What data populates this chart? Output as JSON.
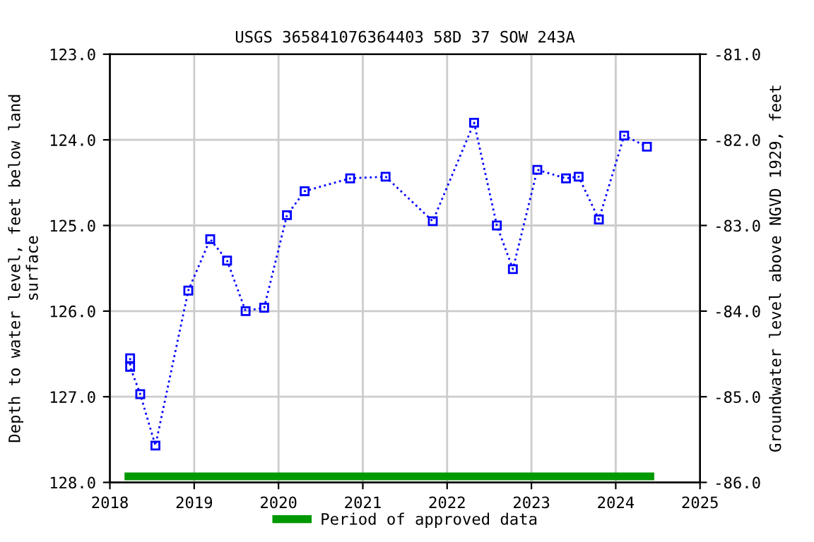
{
  "chart_data": {
    "type": "line",
    "title": "USGS 365841076364403 58D 37 SOW 243A",
    "ylabel": "Depth to water level, feet below land\nsurface",
    "y2label": "Groundwater level above NGVD 1929, feet",
    "xlim": [
      2018,
      2025
    ],
    "xticks": [
      2018,
      2019,
      2020,
      2021,
      2022,
      2023,
      2024,
      2025
    ],
    "ylim": [
      128,
      123
    ],
    "yticks": [
      {
        "value": 123,
        "label": "123.0"
      },
      {
        "value": 124,
        "label": "124.0"
      },
      {
        "value": 125,
        "label": "125.0"
      },
      {
        "value": 126,
        "label": "126.0"
      },
      {
        "value": 127,
        "label": "127.0"
      },
      {
        "value": 128,
        "label": "128.0"
      }
    ],
    "y2lim": [
      -86,
      -81
    ],
    "y2ticks": [
      {
        "value": -81,
        "label": "-81.0"
      },
      {
        "value": -82,
        "label": "-82.0"
      },
      {
        "value": -83,
        "label": "-83.0"
      },
      {
        "value": -84,
        "label": "-84.0"
      },
      {
        "value": -85,
        "label": "-85.0"
      },
      {
        "value": -86,
        "label": "-86.0"
      }
    ],
    "grid": true,
    "legend": "bottom",
    "series": [
      {
        "color": "#0000ff",
        "marker": "square",
        "line_style": "dotted",
        "x": [
          2018.24,
          2018.24,
          2018.36,
          2018.54,
          2018.93,
          2019.19,
          2019.39,
          2019.61,
          2019.83,
          2020.1,
          2020.31,
          2020.85,
          2021.27,
          2021.83,
          2022.32,
          2022.59,
          2022.78,
          2023.07,
          2023.41,
          2023.56,
          2023.8,
          2024.1,
          2024.37
        ],
        "values": [
          126.55,
          126.65,
          126.97,
          127.57,
          125.76,
          125.16,
          125.41,
          126.0,
          125.96,
          124.88,
          124.6,
          124.45,
          124.43,
          124.95,
          123.8,
          125.0,
          125.51,
          124.35,
          124.45,
          124.43,
          124.93,
          123.95,
          124.08
        ]
      },
      {
        "name": "Period of approved data",
        "color": "#009900",
        "marker": "none",
        "line_style": "solid",
        "x": [
          2018.22,
          2024.41
        ],
        "values": [
          127.93,
          127.93
        ]
      }
    ]
  }
}
